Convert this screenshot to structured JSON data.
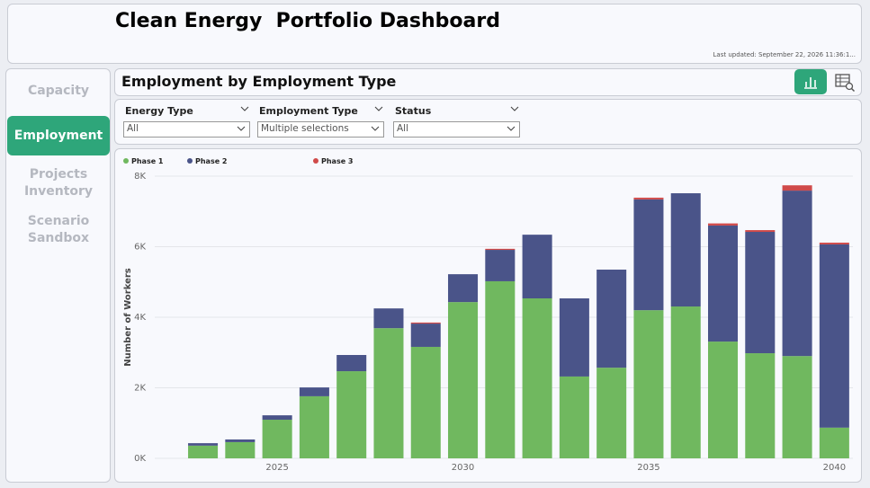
{
  "header": {
    "title": "Clean Energy  Portfolio Dashboard",
    "last_updated": "Last updated: September 22, 2026 11:36:1..."
  },
  "nav": [
    "Capacity",
    "Employment",
    "Projects Inventory",
    "Scenario Sandbox"
  ],
  "panel_title": "Employment by Employment Type",
  "filters": [
    {
      "label": "Energy Type",
      "value": "All"
    },
    {
      "label": "Employment Type",
      "value": "Multiple selections"
    },
    {
      "label": "Status",
      "value": "All"
    }
  ],
  "chart_data": {
    "type": "stacked_bar",
    "y_label": "Number of Workers",
    "x": [
      2023,
      2024,
      2025,
      2026,
      2027,
      2028,
      2029,
      2030,
      2031,
      2032,
      2033,
      2034,
      2035,
      2036,
      2037,
      2038,
      2039,
      2040
    ],
    "xlim": [
      2021,
      2040.5
    ],
    "xticks": [
      2025,
      2030,
      2035,
      2040
    ],
    "ylim": [
      0,
      8000
    ],
    "yticks": [
      {
        "value": 0,
        "label": "0K"
      },
      {
        "value": 2000,
        "label": "2K"
      },
      {
        "value": 4000,
        "label": "4K"
      },
      {
        "value": 6000,
        "label": "6K"
      },
      {
        "value": 8000,
        "label": "8K"
      }
    ],
    "grid": true,
    "series": [
      {
        "name": "Phase 1",
        "color": "#70b85f",
        "values": [
          360,
          460,
          1095,
          1760,
          2470,
          3690,
          3160,
          4430,
          5020,
          4535,
          2320,
          2570,
          4200,
          4305,
          3310,
          2980,
          2900,
          870
        ]
      },
      {
        "name": "Phase 2",
        "color": "#4a5489",
        "values": [
          70,
          75,
          125,
          250,
          460,
          560,
          660,
          790,
          890,
          1805,
          2215,
          2780,
          3140,
          3210,
          3290,
          3440,
          4690,
          5195
        ]
      },
      {
        "name": "Phase 3",
        "color": "#d04a4a",
        "values": [
          0,
          0,
          0,
          0,
          0,
          0,
          30,
          0,
          30,
          0,
          0,
          0,
          50,
          0,
          60,
          50,
          150,
          50
        ]
      }
    ]
  }
}
